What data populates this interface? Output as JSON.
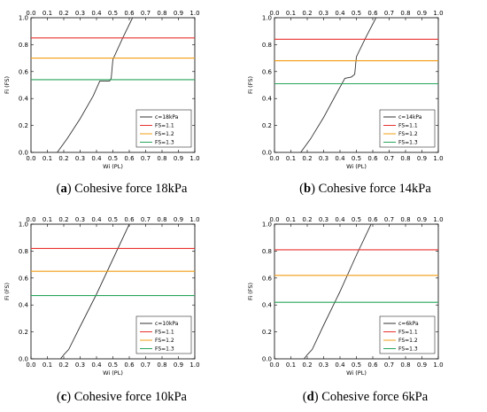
{
  "chart_data": [
    {
      "type": "line",
      "caption_letter": "a",
      "caption_text": "Cohesive force 18kPa",
      "xlabel": "Wi (PL)",
      "ylabel": "Fi (FS)",
      "xlim": [
        0.0,
        1.0
      ],
      "ylim": [
        0.0,
        1.0
      ],
      "x_ticks": [
        "0.0",
        "0.1",
        "0.2",
        "0.3",
        "0.4",
        "0.5",
        "0.6",
        "0.7",
        "0.8",
        "0.9",
        "1.0"
      ],
      "y_ticks": [
        "0.0",
        "0.2",
        "0.4",
        "0.6",
        "0.8",
        "1.0"
      ],
      "legend_position": "bottom-right",
      "series": [
        {
          "name": "c=18kPa",
          "color": "#333333",
          "x": [
            0.16,
            0.22,
            0.3,
            0.38,
            0.42,
            0.48,
            0.49,
            0.5,
            0.56,
            0.62
          ],
          "y": [
            0.0,
            0.1,
            0.25,
            0.42,
            0.53,
            0.53,
            0.55,
            0.69,
            0.85,
            1.0
          ]
        },
        {
          "name": "FS=1.1",
          "color": "#e8312f",
          "x": [
            0,
            1
          ],
          "y": [
            0.85,
            0.85
          ]
        },
        {
          "name": "FS=1.2",
          "color": "#f39c12",
          "x": [
            0,
            1
          ],
          "y": [
            0.7,
            0.7
          ]
        },
        {
          "name": "FS=1.3",
          "color": "#27a55a",
          "x": [
            0,
            1
          ],
          "y": [
            0.54,
            0.54
          ]
        }
      ]
    },
    {
      "type": "line",
      "caption_letter": "b",
      "caption_text": "Cohesive force 14kPa",
      "xlabel": "Wi (PL)",
      "ylabel": "Fi (FS)",
      "xlim": [
        0.0,
        1.0
      ],
      "ylim": [
        0.0,
        1.0
      ],
      "x_ticks": [
        "0.0",
        "0.1",
        "0.2",
        "0.3",
        "0.4",
        "0.5",
        "0.6",
        "0.7",
        "0.8",
        "0.9",
        "1.0"
      ],
      "y_ticks": [
        "0.0",
        "0.2",
        "0.4",
        "0.6",
        "0.8",
        "1.0"
      ],
      "legend_position": "bottom-right",
      "series": [
        {
          "name": "c=14kPa",
          "color": "#333333",
          "x": [
            0.16,
            0.22,
            0.3,
            0.38,
            0.43,
            0.47,
            0.49,
            0.5,
            0.56,
            0.62
          ],
          "y": [
            0.0,
            0.1,
            0.26,
            0.44,
            0.55,
            0.56,
            0.58,
            0.71,
            0.86,
            1.0
          ]
        },
        {
          "name": "FS=1.1",
          "color": "#e8312f",
          "x": [
            0,
            1
          ],
          "y": [
            0.84,
            0.84
          ]
        },
        {
          "name": "FS=1.2",
          "color": "#f39c12",
          "x": [
            0,
            1
          ],
          "y": [
            0.68,
            0.68
          ]
        },
        {
          "name": "FS=1.3",
          "color": "#27a55a",
          "x": [
            0,
            1
          ],
          "y": [
            0.51,
            0.51
          ]
        }
      ]
    },
    {
      "type": "line",
      "caption_letter": "c",
      "caption_text": "Cohesive force 10kPa",
      "xlabel": "Wi (PL)",
      "ylabel": "Fi (FS)",
      "xlim": [
        0.0,
        1.0
      ],
      "ylim": [
        0.0,
        1.0
      ],
      "x_ticks": [
        "0.0",
        "0.1",
        "0.2",
        "0.3",
        "0.4",
        "0.5",
        "0.6",
        "0.7",
        "0.8",
        "0.9",
        "1.0"
      ],
      "y_ticks": [
        "0.0",
        "0.2",
        "0.4",
        "0.6",
        "0.8",
        "1.0"
      ],
      "legend_position": "bottom-right",
      "series": [
        {
          "name": "c=10kPa",
          "color": "#333333",
          "x": [
            0.18,
            0.2,
            0.23,
            0.3,
            0.4,
            0.5,
            0.6
          ],
          "y": [
            0.0,
            0.03,
            0.07,
            0.24,
            0.48,
            0.74,
            1.0
          ]
        },
        {
          "name": "FS=1.1",
          "color": "#e8312f",
          "x": [
            0,
            1
          ],
          "y": [
            0.82,
            0.82
          ]
        },
        {
          "name": "FS=1.2",
          "color": "#f39c12",
          "x": [
            0,
            1
          ],
          "y": [
            0.65,
            0.65
          ]
        },
        {
          "name": "FS=1.3",
          "color": "#27a55a",
          "x": [
            0,
            1
          ],
          "y": [
            0.47,
            0.47
          ]
        }
      ]
    },
    {
      "type": "line",
      "caption_letter": "d",
      "caption_text": "Cohesive force 6kPa",
      "xlabel": "Wi (PL)",
      "ylabel": "Fi (FS)",
      "xlim": [
        0.0,
        1.0
      ],
      "ylim": [
        0.0,
        1.0
      ],
      "x_ticks": [
        "0.0",
        "0.1",
        "0.2",
        "0.3",
        "0.4",
        "0.5",
        "0.6",
        "0.7",
        "0.8",
        "0.9",
        "1.0"
      ],
      "y_ticks": [
        "0.0",
        "0.2",
        "0.4",
        "0.6",
        "0.8",
        "1.0"
      ],
      "legend_position": "bottom-right",
      "series": [
        {
          "name": "c=6kPa",
          "color": "#333333",
          "x": [
            0.18,
            0.2,
            0.23,
            0.3,
            0.4,
            0.5,
            0.59
          ],
          "y": [
            0.0,
            0.03,
            0.07,
            0.25,
            0.5,
            0.77,
            1.0
          ]
        },
        {
          "name": "FS=1.1",
          "color": "#e8312f",
          "x": [
            0,
            1
          ],
          "y": [
            0.81,
            0.81
          ]
        },
        {
          "name": "FS=1.2",
          "color": "#f39c12",
          "x": [
            0,
            1
          ],
          "y": [
            0.62,
            0.62
          ]
        },
        {
          "name": "FS=1.3",
          "color": "#27a55a",
          "x": [
            0,
            1
          ],
          "y": [
            0.42,
            0.42
          ]
        }
      ]
    }
  ]
}
